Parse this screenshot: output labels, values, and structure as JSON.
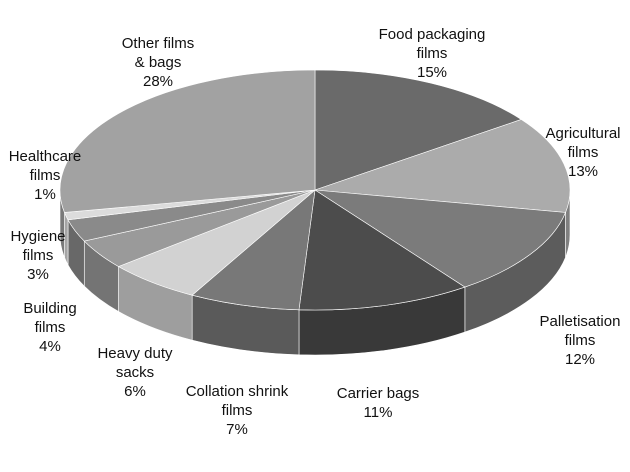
{
  "chart_data": {
    "type": "pie",
    "3d": true,
    "categories": [
      "Food packaging films",
      "Agricultural films",
      "Palletisation films",
      "Carrier bags",
      "Collation shrink films",
      "Heavy duty sacks",
      "Building films",
      "Hygiene films",
      "Healthcare films",
      "Other films & bags"
    ],
    "values": [
      15,
      13,
      12,
      11,
      7,
      6,
      4,
      3,
      1,
      28
    ],
    "value_labels": [
      "15%",
      "13%",
      "12%",
      "11%",
      "7%",
      "6%",
      "4%",
      "3%",
      "1%",
      "28%"
    ],
    "colors": [
      "#6a6a6a",
      "#ababab",
      "#7b7b7b",
      "#4c4c4c",
      "#787878",
      "#d2d2d2",
      "#9a9a9a",
      "#8a8a8a",
      "#dcdcdc",
      "#a2a2a2"
    ]
  }
}
